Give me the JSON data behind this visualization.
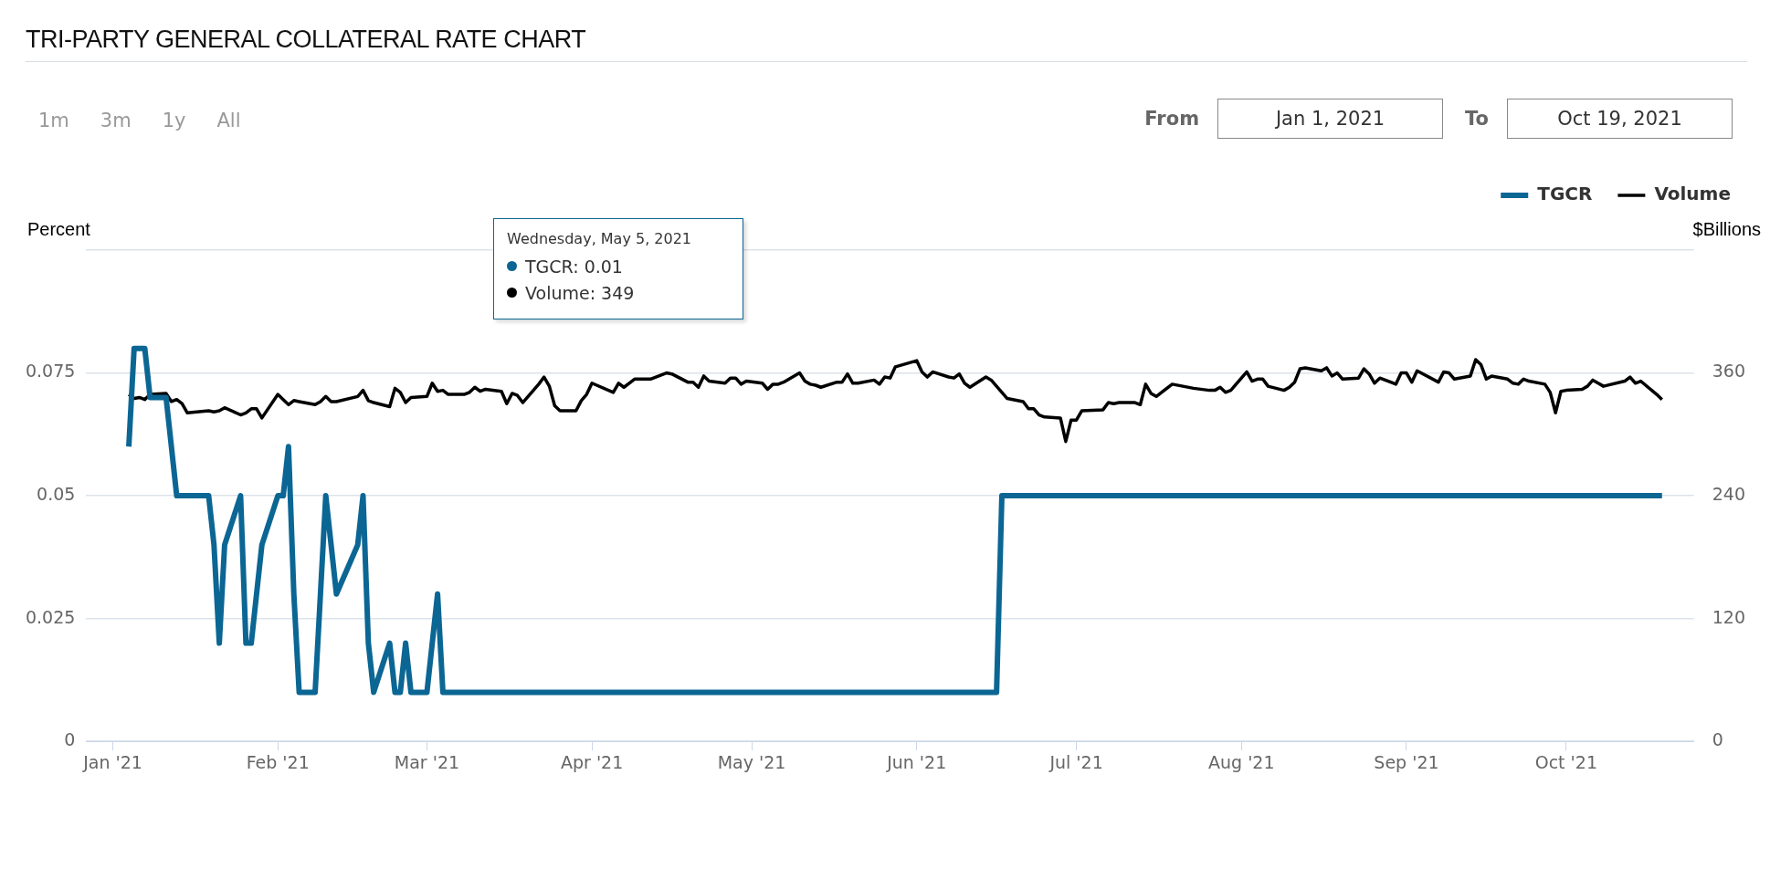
{
  "chart_data": {
    "type": "line",
    "title": "TRI-PARTY GENERAL COLLATERAL RATE CHART",
    "ylabel": "Percent",
    "y2label": "$Billions",
    "annotations": [
      "1m",
      "3m",
      "1y",
      "All",
      "From",
      "Jan 1, 2021",
      "To",
      "Oct 19, 2021",
      "Wednesday, May 5, 2021",
      "TGCR: 0.01",
      "Volume: 349"
    ],
    "series": [
      {
        "name": "TGCR",
        "color": "#0b6694",
        "x": [
          "2021-01-04",
          "2021-01-05",
          "2021-01-06",
          "2021-01-07",
          "2021-01-08",
          "2021-01-11",
          "2021-01-12",
          "2021-01-13",
          "2021-01-14",
          "2021-01-15",
          "2021-01-19",
          "2021-01-20",
          "2021-01-21",
          "2021-01-22",
          "2021-01-25",
          "2021-01-26",
          "2021-01-27",
          "2021-01-28",
          "2021-01-29",
          "2021-02-01",
          "2021-02-02",
          "2021-02-03",
          "2021-02-04",
          "2021-02-05",
          "2021-02-08",
          "2021-02-09",
          "2021-02-10",
          "2021-02-11",
          "2021-02-12",
          "2021-02-16",
          "2021-02-17",
          "2021-02-18",
          "2021-02-19",
          "2021-02-22",
          "2021-02-23",
          "2021-02-24",
          "2021-02-25",
          "2021-02-26",
          "2021-03-01",
          "2021-03-02",
          "2021-03-03",
          "2021-03-04",
          "2021-06-16",
          "2021-06-17",
          "2021-10-19"
        ],
        "values": [
          0.06,
          0.08,
          0.08,
          0.08,
          0.07,
          0.07,
          0.06,
          0.05,
          0.05,
          0.05,
          0.05,
          0.04,
          0.02,
          0.04,
          0.05,
          0.02,
          0.02,
          0.03,
          0.04,
          0.05,
          0.05,
          0.06,
          0.03,
          0.01,
          0.01,
          0.03,
          0.05,
          0.04,
          0.03,
          0.04,
          0.05,
          0.02,
          0.01,
          0.02,
          0.01,
          0.01,
          0.02,
          0.01,
          0.01,
          0.02,
          0.03,
          0.01,
          0.01,
          0.05,
          0.05
        ]
      },
      {
        "name": "Volume",
        "color": "#000000",
        "axis": "y2",
        "x": [
          "2021-01-04",
          "2021-01-05",
          "2021-01-06",
          "2021-01-07",
          "2021-01-08",
          "2021-01-11",
          "2021-01-12",
          "2021-01-13",
          "2021-01-14",
          "2021-01-15",
          "2021-01-19",
          "2021-01-20",
          "2021-01-21",
          "2021-01-22",
          "2021-01-25",
          "2021-01-26",
          "2021-01-27",
          "2021-01-28",
          "2021-01-29",
          "2021-02-01",
          "2021-02-02",
          "2021-02-03",
          "2021-02-04",
          "2021-02-05",
          "2021-02-08",
          "2021-02-09",
          "2021-02-10",
          "2021-02-11",
          "2021-02-12",
          "2021-02-16",
          "2021-02-17",
          "2021-02-18",
          "2021-02-19",
          "2021-02-22",
          "2021-02-23",
          "2021-02-24",
          "2021-02-25",
          "2021-02-26",
          "2021-03-01",
          "2021-03-02",
          "2021-03-03",
          "2021-03-04",
          "2021-03-05",
          "2021-03-08",
          "2021-03-09",
          "2021-03-10",
          "2021-03-11",
          "2021-03-12",
          "2021-03-15",
          "2021-03-16",
          "2021-03-17",
          "2021-03-18",
          "2021-03-19",
          "2021-03-22",
          "2021-03-23",
          "2021-03-24",
          "2021-03-25",
          "2021-03-26",
          "2021-03-29",
          "2021-03-30",
          "2021-03-31",
          "2021-04-01",
          "2021-04-05",
          "2021-04-06",
          "2021-04-07",
          "2021-04-08",
          "2021-04-09",
          "2021-04-12",
          "2021-04-15",
          "2021-04-16",
          "2021-04-19",
          "2021-04-20",
          "2021-04-21",
          "2021-04-22",
          "2021-04-23",
          "2021-04-26",
          "2021-04-27",
          "2021-04-28",
          "2021-04-29",
          "2021-04-30",
          "2021-05-03",
          "2021-05-04",
          "2021-05-05",
          "2021-05-06",
          "2021-05-07",
          "2021-05-10",
          "2021-05-11",
          "2021-05-12",
          "2021-05-13",
          "2021-05-14",
          "2021-05-17",
          "2021-05-18",
          "2021-05-19",
          "2021-05-20",
          "2021-05-21",
          "2021-05-24",
          "2021-05-25",
          "2021-05-26",
          "2021-05-27",
          "2021-05-28",
          "2021-06-01",
          "2021-06-02",
          "2021-06-03",
          "2021-06-04",
          "2021-06-07",
          "2021-06-08",
          "2021-06-09",
          "2021-06-10",
          "2021-06-11",
          "2021-06-14",
          "2021-06-15",
          "2021-06-16",
          "2021-06-17",
          "2021-06-18",
          "2021-06-21",
          "2021-06-22",
          "2021-06-23",
          "2021-06-24",
          "2021-06-25",
          "2021-06-28",
          "2021-06-29",
          "2021-06-30",
          "2021-07-01",
          "2021-07-02",
          "2021-07-06",
          "2021-07-07",
          "2021-07-08",
          "2021-07-09",
          "2021-07-12",
          "2021-07-13",
          "2021-07-14",
          "2021-07-15",
          "2021-07-16",
          "2021-07-19",
          "2021-07-23",
          "2021-07-26",
          "2021-07-27",
          "2021-07-28",
          "2021-07-29",
          "2021-07-30",
          "2021-08-02",
          "2021-08-03",
          "2021-08-04",
          "2021-08-05",
          "2021-08-06",
          "2021-08-09",
          "2021-08-10",
          "2021-08-11",
          "2021-08-12",
          "2021-08-13",
          "2021-08-16",
          "2021-08-17",
          "2021-08-18",
          "2021-08-19",
          "2021-08-20",
          "2021-08-23",
          "2021-08-24",
          "2021-08-25",
          "2021-08-26",
          "2021-08-27",
          "2021-08-30",
          "2021-08-31",
          "2021-09-01",
          "2021-09-02",
          "2021-09-03",
          "2021-09-07",
          "2021-09-08",
          "2021-09-09",
          "2021-09-10",
          "2021-09-13",
          "2021-09-14",
          "2021-09-15",
          "2021-09-16",
          "2021-09-17",
          "2021-09-20",
          "2021-09-21",
          "2021-09-22",
          "2021-09-23",
          "2021-09-24",
          "2021-09-27",
          "2021-09-28",
          "2021-09-29",
          "2021-09-30",
          "2021-10-01",
          "2021-10-04",
          "2021-10-05",
          "2021-10-06",
          "2021-10-07",
          "2021-10-08",
          "2021-10-12",
          "2021-10-13",
          "2021-10-14",
          "2021-10-15",
          "2021-10-18",
          "2021-10-19"
        ],
        "values": [
          339,
          335,
          336,
          334,
          339,
          340,
          332,
          334,
          330,
          321,
          323,
          322,
          323,
          326,
          319,
          321,
          325,
          325,
          316,
          339,
          334,
          329,
          333,
          332,
          329,
          332,
          337,
          332,
          332,
          337,
          343,
          333,
          331,
          327,
          345,
          341,
          331,
          336,
          337,
          350,
          342,
          343,
          339,
          339,
          341,
          346,
          342,
          344,
          342,
          330,
          340,
          338,
          331,
          349,
          356,
          347,
          328,
          323,
          323,
          333,
          339,
          350,
          341,
          350,
          346,
          350,
          354,
          354,
          360,
          359,
          351,
          351,
          346,
          357,
          352,
          350,
          355,
          355,
          349,
          352,
          350,
          344,
          349,
          349,
          351,
          360,
          352,
          349,
          348,
          346,
          351,
          351,
          359,
          350,
          350,
          353,
          349,
          356,
          355,
          366,
          372,
          361,
          356,
          361,
          356,
          355,
          359,
          350,
          346,
          356,
          353,
          347,
          341,
          335,
          332,
          325,
          325,
          319,
          317,
          316,
          293,
          314,
          314,
          323,
          324,
          331,
          330,
          331,
          331,
          329,
          349,
          340,
          337,
          349,
          345,
          343,
          343,
          346,
          341,
          343,
          361,
          352,
          354,
          354,
          347,
          343,
          346,
          351,
          364,
          365,
          362,
          365,
          357,
          360,
          354,
          355,
          364,
          359,
          350,
          355,
          349,
          360,
          360,
          351,
          362,
          351,
          361,
          360,
          354,
          357,
          373,
          368,
          354,
          357,
          354,
          350,
          349,
          354,
          352,
          349,
          341,
          321,
          342,
          343,
          344,
          347,
          353,
          350,
          347,
          352,
          356,
          350,
          352,
          339,
          334
        ]
      }
    ],
    "xlim": [
      "2020-12-27",
      "2021-10-25"
    ],
    "xticks": [
      {
        "value": "2021-01-01",
        "label": "Jan '21"
      },
      {
        "value": "2021-02-01",
        "label": "Feb '21"
      },
      {
        "value": "2021-03-01",
        "label": "Mar '21"
      },
      {
        "value": "2021-04-01",
        "label": "Apr '21"
      },
      {
        "value": "2021-05-01",
        "label": "May '21"
      },
      {
        "value": "2021-06-01",
        "label": "Jun '21"
      },
      {
        "value": "2021-07-01",
        "label": "Jul '21"
      },
      {
        "value": "2021-08-01",
        "label": "Aug '21"
      },
      {
        "value": "2021-09-01",
        "label": "Sep '21"
      },
      {
        "value": "2021-10-01",
        "label": "Oct '21"
      }
    ],
    "ylim": [
      0,
      0.1
    ],
    "yticks": [
      0,
      0.025,
      0.05,
      0.075,
      {
        "value": 0.1,
        "label": null
      }
    ],
    "y2lim": [
      0,
      480
    ],
    "y2ticks": [
      0,
      120,
      240,
      360
    ],
    "grid": "y",
    "legend": "top right",
    "marker": "none"
  }
}
